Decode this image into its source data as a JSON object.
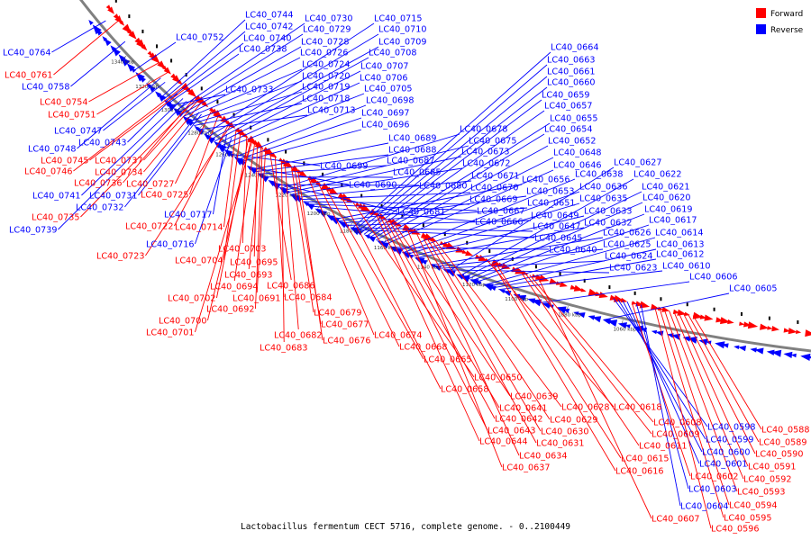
{
  "caption": "Lactobacillus fermentum CECT 5716, complete genome. - 0..2100449",
  "legend": [
    {
      "label": "Forward",
      "color": "#ff0000"
    },
    {
      "label": "Reverse",
      "color": "#0000ff"
    }
  ],
  "colors": {
    "forward": "#ff0000",
    "reverse": "#0000ff",
    "backbone": "#808080"
  },
  "ticks": [
    "1340 kbp",
    "1320 kbp",
    "1300 kbp",
    "1280 kbp",
    "1260 kbp",
    "1240 kbp",
    "1220 kbp",
    "1200 kbp",
    "1180 kbp",
    "1160 kbp",
    "1140 kbp",
    "1120 kbp",
    "1100 kbp",
    "1080 kbp",
    "1060 kbp"
  ],
  "genes": [
    {
      "id": "LC40_0764",
      "strand": "reverse"
    },
    {
      "id": "LC40_0761",
      "strand": "forward"
    },
    {
      "id": "LC40_0758",
      "strand": "reverse"
    },
    {
      "id": "LC40_0754",
      "strand": "forward"
    },
    {
      "id": "LC40_0751",
      "strand": "forward"
    },
    {
      "id": "LC40_0752",
      "strand": "reverse"
    },
    {
      "id": "LC40_0747",
      "strand": "reverse"
    },
    {
      "id": "LC40_0748",
      "strand": "reverse"
    },
    {
      "id": "LC40_0743",
      "strand": "reverse"
    },
    {
      "id": "LC40_0745",
      "strand": "forward"
    },
    {
      "id": "LC40_0737",
      "strand": "forward"
    },
    {
      "id": "LC40_0746",
      "strand": "forward"
    },
    {
      "id": "LC40_0734",
      "strand": "forward"
    },
    {
      "id": "LC40_0736",
      "strand": "forward"
    },
    {
      "id": "LC40_0727",
      "strand": "forward"
    },
    {
      "id": "LC40_0741",
      "strand": "reverse"
    },
    {
      "id": "LC40_0731",
      "strand": "reverse"
    },
    {
      "id": "LC40_0725",
      "strand": "forward"
    },
    {
      "id": "LC40_0732",
      "strand": "reverse"
    },
    {
      "id": "LC40_0735",
      "strand": "forward"
    },
    {
      "id": "LC40_0739",
      "strand": "reverse"
    },
    {
      "id": "LC40_0717",
      "strand": "reverse"
    },
    {
      "id": "LC40_0722",
      "strand": "forward"
    },
    {
      "id": "LC40_0714",
      "strand": "forward"
    },
    {
      "id": "LC40_0716",
      "strand": "reverse"
    },
    {
      "id": "LC40_0723",
      "strand": "forward"
    },
    {
      "id": "LC40_0744",
      "strand": "reverse"
    },
    {
      "id": "LC40_0742",
      "strand": "reverse"
    },
    {
      "id": "LC40_0740",
      "strand": "reverse"
    },
    {
      "id": "LC40_0738",
      "strand": "reverse"
    },
    {
      "id": "LC40_0730",
      "strand": "reverse"
    },
    {
      "id": "LC40_0729",
      "strand": "reverse"
    },
    {
      "id": "LC40_0728",
      "strand": "reverse"
    },
    {
      "id": "LC40_0726",
      "strand": "reverse"
    },
    {
      "id": "LC40_0724",
      "strand": "reverse"
    },
    {
      "id": "LC40_0720",
      "strand": "reverse"
    },
    {
      "id": "LC40_0719",
      "strand": "reverse"
    },
    {
      "id": "LC40_0718",
      "strand": "reverse"
    },
    {
      "id": "LC40_0713",
      "strand": "reverse"
    },
    {
      "id": "LC40_0733",
      "strand": "reverse"
    },
    {
      "id": "LC40_0715",
      "strand": "reverse"
    },
    {
      "id": "LC40_0710",
      "strand": "reverse"
    },
    {
      "id": "LC40_0709",
      "strand": "reverse"
    },
    {
      "id": "LC40_0708",
      "strand": "reverse"
    },
    {
      "id": "LC40_0707",
      "strand": "reverse"
    },
    {
      "id": "LC40_0706",
      "strand": "reverse"
    },
    {
      "id": "LC40_0705",
      "strand": "reverse"
    },
    {
      "id": "LC40_0698",
      "strand": "reverse"
    },
    {
      "id": "LC40_0697",
      "strand": "reverse"
    },
    {
      "id": "LC40_0696",
      "strand": "reverse"
    },
    {
      "id": "LC40_0689",
      "strand": "reverse"
    },
    {
      "id": "LC40_0688",
      "strand": "reverse"
    },
    {
      "id": "LC40_0687",
      "strand": "reverse"
    },
    {
      "id": "LC40_0685",
      "strand": "reverse"
    },
    {
      "id": "LC40_0699",
      "strand": "reverse"
    },
    {
      "id": "LC40_0690",
      "strand": "reverse"
    },
    {
      "id": "LC40_0678",
      "strand": "reverse"
    },
    {
      "id": "LC40_0675",
      "strand": "reverse"
    },
    {
      "id": "LC40_0673",
      "strand": "reverse"
    },
    {
      "id": "LC40_0672",
      "strand": "reverse"
    },
    {
      "id": "LC40_0671",
      "strand": "reverse"
    },
    {
      "id": "LC40_0670",
      "strand": "reverse"
    },
    {
      "id": "LC40_0669",
      "strand": "reverse"
    },
    {
      "id": "LC40_0667",
      "strand": "reverse"
    },
    {
      "id": "LC40_0666",
      "strand": "reverse"
    },
    {
      "id": "LC40_0680",
      "strand": "reverse"
    },
    {
      "id": "LC40_0681",
      "strand": "reverse"
    },
    {
      "id": "LC40_0664",
      "strand": "reverse"
    },
    {
      "id": "LC40_0663",
      "strand": "reverse"
    },
    {
      "id": "LC40_0661",
      "strand": "reverse"
    },
    {
      "id": "LC40_0660",
      "strand": "reverse"
    },
    {
      "id": "LC40_0659",
      "strand": "reverse"
    },
    {
      "id": "LC40_0657",
      "strand": "reverse"
    },
    {
      "id": "LC40_0655",
      "strand": "reverse"
    },
    {
      "id": "LC40_0654",
      "strand": "reverse"
    },
    {
      "id": "LC40_0652",
      "strand": "reverse"
    },
    {
      "id": "LC40_0648",
      "strand": "reverse"
    },
    {
      "id": "LC40_0646",
      "strand": "reverse"
    },
    {
      "id": "LC40_0656",
      "strand": "reverse"
    },
    {
      "id": "LC40_0653",
      "strand": "reverse"
    },
    {
      "id": "LC40_0651",
      "strand": "reverse"
    },
    {
      "id": "LC40_0649",
      "strand": "reverse"
    },
    {
      "id": "LC40_0647",
      "strand": "reverse"
    },
    {
      "id": "LC40_0645",
      "strand": "reverse"
    },
    {
      "id": "LC40_0640",
      "strand": "reverse"
    },
    {
      "id": "LC40_0638",
      "strand": "reverse"
    },
    {
      "id": "LC40_0636",
      "strand": "reverse"
    },
    {
      "id": "LC40_0635",
      "strand": "reverse"
    },
    {
      "id": "LC40_0633",
      "strand": "reverse"
    },
    {
      "id": "LC40_0632",
      "strand": "reverse"
    },
    {
      "id": "LC40_0627",
      "strand": "reverse"
    },
    {
      "id": "LC40_0622",
      "strand": "reverse"
    },
    {
      "id": "LC40_0621",
      "strand": "reverse"
    },
    {
      "id": "LC40_0620",
      "strand": "reverse"
    },
    {
      "id": "LC40_0619",
      "strand": "reverse"
    },
    {
      "id": "LC40_0617",
      "strand": "reverse"
    },
    {
      "id": "LC40_0626",
      "strand": "reverse"
    },
    {
      "id": "LC40_0625",
      "strand": "reverse"
    },
    {
      "id": "LC40_0624",
      "strand": "reverse"
    },
    {
      "id": "LC40_0623",
      "strand": "reverse"
    },
    {
      "id": "LC40_0614",
      "strand": "reverse"
    },
    {
      "id": "LC40_0613",
      "strand": "reverse"
    },
    {
      "id": "LC40_0612",
      "strand": "reverse"
    },
    {
      "id": "LC40_0610",
      "strand": "reverse"
    },
    {
      "id": "LC40_0606",
      "strand": "reverse"
    },
    {
      "id": "LC40_0605",
      "strand": "reverse"
    },
    {
      "id": "LC40_0703",
      "strand": "forward"
    },
    {
      "id": "LC40_0704",
      "strand": "forward"
    },
    {
      "id": "LC40_0695",
      "strand": "forward"
    },
    {
      "id": "LC40_0693",
      "strand": "forward"
    },
    {
      "id": "LC40_0694",
      "strand": "forward"
    },
    {
      "id": "LC40_0686",
      "strand": "forward"
    },
    {
      "id": "LC40_0702",
      "strand": "forward"
    },
    {
      "id": "LC40_0691",
      "strand": "forward"
    },
    {
      "id": "LC40_0684",
      "strand": "forward"
    },
    {
      "id": "LC40_0692",
      "strand": "forward"
    },
    {
      "id": "LC40_0700",
      "strand": "forward"
    },
    {
      "id": "LC40_0701",
      "strand": "forward"
    },
    {
      "id": "LC40_0679",
      "strand": "forward"
    },
    {
      "id": "LC40_0677",
      "strand": "forward"
    },
    {
      "id": "LC40_0682",
      "strand": "forward"
    },
    {
      "id": "LC40_0683",
      "strand": "forward"
    },
    {
      "id": "LC40_0676",
      "strand": "forward"
    },
    {
      "id": "LC40_0674",
      "strand": "forward"
    },
    {
      "id": "LC40_0668",
      "strand": "forward"
    },
    {
      "id": "LC40_0665",
      "strand": "forward"
    },
    {
      "id": "LC40_0650",
      "strand": "forward"
    },
    {
      "id": "LC40_0658",
      "strand": "forward"
    },
    {
      "id": "LC40_0639",
      "strand": "forward"
    },
    {
      "id": "LC40_0641",
      "strand": "forward"
    },
    {
      "id": "LC40_0642",
      "strand": "forward"
    },
    {
      "id": "LC40_0628",
      "strand": "forward"
    },
    {
      "id": "LC40_0629",
      "strand": "forward"
    },
    {
      "id": "LC40_0643",
      "strand": "forward"
    },
    {
      "id": "LC40_0630",
      "strand": "forward"
    },
    {
      "id": "LC40_0644",
      "strand": "forward"
    },
    {
      "id": "LC40_0631",
      "strand": "forward"
    },
    {
      "id": "LC40_0634",
      "strand": "forward"
    },
    {
      "id": "LC40_0637",
      "strand": "forward"
    },
    {
      "id": "LC40_0618",
      "strand": "forward"
    },
    {
      "id": "LC40_0608",
      "strand": "forward"
    },
    {
      "id": "LC40_0609",
      "strand": "forward"
    },
    {
      "id": "LC40_0611",
      "strand": "forward"
    },
    {
      "id": "LC40_0615",
      "strand": "forward"
    },
    {
      "id": "LC40_0616",
      "strand": "forward"
    },
    {
      "id": "LC40_0607",
      "strand": "forward"
    },
    {
      "id": "LC40_0598",
      "strand": "reverse"
    },
    {
      "id": "LC40_0599",
      "strand": "reverse"
    },
    {
      "id": "LC40_0600",
      "strand": "reverse"
    },
    {
      "id": "LC40_0601",
      "strand": "reverse"
    },
    {
      "id": "LC40_0602",
      "strand": "forward"
    },
    {
      "id": "LC40_0603",
      "strand": "reverse"
    },
    {
      "id": "LC40_0604",
      "strand": "reverse"
    },
    {
      "id": "LC40_0588",
      "strand": "forward"
    },
    {
      "id": "LC40_0589",
      "strand": "forward"
    },
    {
      "id": "LC40_0590",
      "strand": "forward"
    },
    {
      "id": "LC40_0591",
      "strand": "forward"
    },
    {
      "id": "LC40_0592",
      "strand": "forward"
    },
    {
      "id": "LC40_0593",
      "strand": "forward"
    },
    {
      "id": "LC40_0594",
      "strand": "forward"
    },
    {
      "id": "LC40_0595",
      "strand": "forward"
    },
    {
      "id": "LC40_0596",
      "strand": "forward"
    }
  ]
}
